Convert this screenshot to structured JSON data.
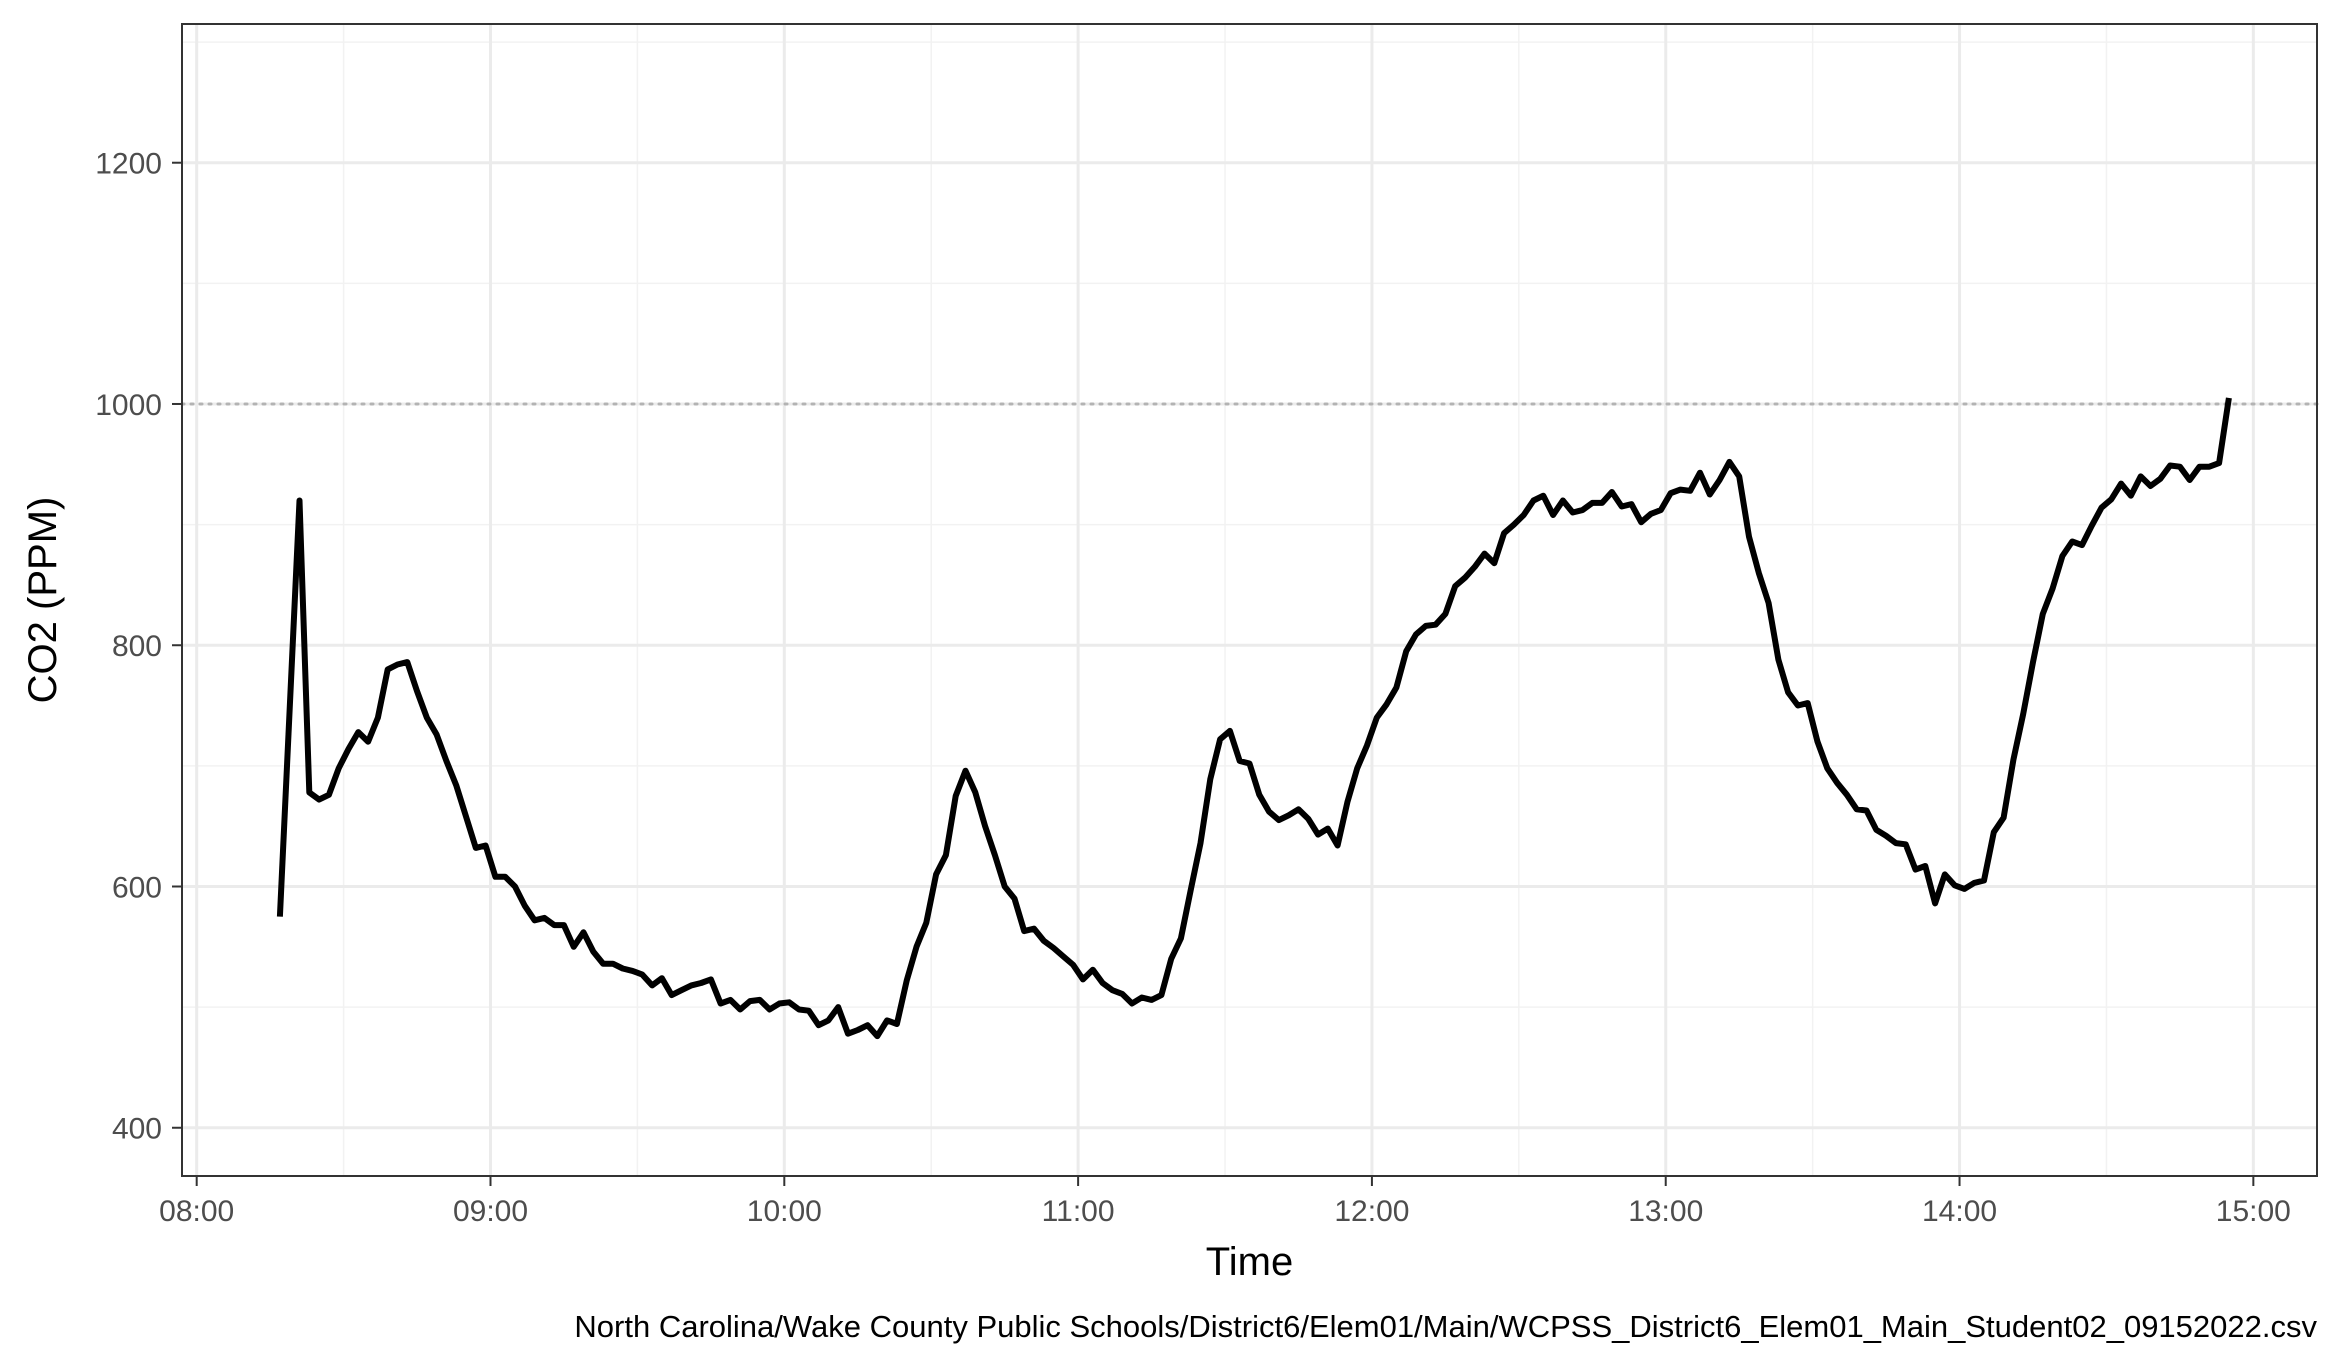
{
  "chart_data": {
    "type": "line",
    "title": "",
    "xlabel": "Time",
    "ylabel": "CO2 (PPM)",
    "caption": "North Carolina/Wake County Public Schools/District6/Elem01/Main/WCPSS_District6_Elem01_Main_Student02_09152022.csv",
    "x_ticks": [
      "08:00",
      "09:00",
      "10:00",
      "11:00",
      "12:00",
      "13:00",
      "14:00",
      "15:00"
    ],
    "y_ticks": [
      400,
      600,
      800,
      1000,
      1200
    ],
    "xlim": [
      "07:57",
      "15:13"
    ],
    "ylim": [
      360,
      1315
    ],
    "grid": true,
    "threshold": {
      "value": 1000,
      "style": "dotted",
      "color": "#b3b3b3"
    },
    "colors": {
      "line": "#000000",
      "panel_border": "#333333",
      "grid_major": "#ebebeb",
      "grid_minor": "#f2f2f2"
    },
    "series": [
      {
        "x": [
          "08:17",
          "08:21",
          "08:23",
          "08:25",
          "08:27",
          "08:29",
          "08:31",
          "08:33",
          "08:35",
          "08:37",
          "08:39",
          "08:41",
          "08:43",
          "08:45",
          "08:47",
          "08:49",
          "08:51",
          "08:53",
          "08:55",
          "08:57",
          "08:59",
          "09:01",
          "09:03",
          "09:05",
          "09:07",
          "09:09",
          "09:11",
          "09:13",
          "09:15",
          "09:17",
          "09:19",
          "09:21",
          "09:23",
          "09:25",
          "09:27",
          "09:29",
          "09:31",
          "09:33",
          "09:35",
          "09:37",
          "09:39",
          "09:41",
          "09:43",
          "09:45",
          "09:47",
          "09:49",
          "09:51",
          "09:53",
          "09:55",
          "09:57",
          "09:59",
          "10:01",
          "10:03",
          "10:05",
          "10:07",
          "10:09",
          "10:11",
          "10:13",
          "10:15",
          "10:17",
          "10:19",
          "10:21",
          "10:23",
          "10:25",
          "10:27",
          "10:29",
          "10:31",
          "10:33",
          "10:35",
          "10:37",
          "10:39",
          "10:41",
          "10:43",
          "10:45",
          "10:47",
          "10:49",
          "10:51",
          "10:53",
          "10:55",
          "10:57",
          "10:59",
          "11:01",
          "11:03",
          "11:05",
          "11:07",
          "11:09",
          "11:11",
          "11:13",
          "11:15",
          "11:17",
          "11:19",
          "11:21",
          "11:23",
          "11:25",
          "11:27",
          "11:29",
          "11:31",
          "11:33",
          "11:35",
          "11:37",
          "11:39",
          "11:41",
          "11:43",
          "11:45",
          "11:47",
          "11:49",
          "11:51",
          "11:53",
          "11:55",
          "11:57",
          "11:59",
          "12:01",
          "12:03",
          "12:05",
          "12:07",
          "12:09",
          "12:11",
          "12:13",
          "12:15",
          "12:17",
          "12:19",
          "12:21",
          "12:23",
          "12:25",
          "12:27",
          "12:29",
          "12:31",
          "12:33",
          "12:35",
          "12:37",
          "12:39",
          "12:41",
          "12:43",
          "12:45",
          "12:47",
          "12:49",
          "12:51",
          "12:53",
          "12:55",
          "12:57",
          "12:59",
          "13:01",
          "13:03",
          "13:05",
          "13:07",
          "13:09",
          "13:11",
          "13:13",
          "13:15",
          "13:17",
          "13:19",
          "13:21",
          "13:23",
          "13:25",
          "13:27",
          "13:29",
          "13:31",
          "13:33",
          "13:35",
          "13:37",
          "13:39",
          "13:41",
          "13:43",
          "13:45",
          "13:47",
          "13:49",
          "13:51",
          "13:53",
          "13:55",
          "13:57",
          "13:59",
          "14:01",
          "14:03",
          "14:05",
          "14:07",
          "14:09",
          "14:11",
          "14:13",
          "14:15",
          "14:17",
          "14:19",
          "14:21",
          "14:23",
          "14:25",
          "14:27",
          "14:29",
          "14:31",
          "14:33",
          "14:35",
          "14:37",
          "14:39",
          "14:41",
          "14:43",
          "14:45",
          "14:47",
          "14:49",
          "14:51",
          "14:53",
          "14:55"
        ],
        "y": [
          575,
          920,
          678,
          672,
          676,
          698,
          714,
          728,
          720,
          740,
          780,
          784,
          786,
          762,
          740,
          726,
          704,
          684,
          658,
          632,
          634,
          608,
          608,
          600,
          584,
          572,
          574,
          568,
          568,
          550,
          562,
          546,
          536,
          536,
          532,
          530,
          527,
          518,
          524,
          510,
          514,
          518,
          520,
          523,
          503,
          506,
          498,
          505,
          506,
          498,
          503,
          504,
          498,
          497,
          485,
          489,
          500,
          478,
          481,
          485,
          476,
          489,
          486,
          522,
          550,
          570,
          610,
          626,
          675,
          696,
          678,
          650,
          626,
          600,
          590,
          563,
          565,
          555,
          549,
          542,
          535,
          523,
          531,
          520,
          514,
          511,
          503,
          508,
          506,
          510,
          540,
          557,
          597,
          636,
          689,
          722,
          729,
          704,
          702,
          676,
          662,
          655,
          659,
          664,
          656,
          643,
          648,
          634,
          670,
          698,
          717,
          740,
          751,
          765,
          795,
          809,
          816,
          817,
          826,
          849,
          856,
          865,
          876,
          868,
          893,
          900,
          908,
          920,
          924,
          908,
          920,
          910,
          912,
          918,
          918,
          927,
          915,
          917,
          902,
          909,
          912,
          926,
          929,
          928,
          943,
          925,
          937,
          952,
          940,
          890,
          860,
          835,
          788,
          761,
          750,
          752,
          720,
          698,
          686,
          676,
          664,
          663,
          647,
          642,
          636,
          635,
          614,
          617,
          586,
          610,
          601,
          598,
          603,
          605,
          645,
          657,
          705,
          743,
          786,
          826,
          847,
          874,
          886,
          883,
          899,
          914,
          921,
          934,
          924,
          940,
          932,
          938,
          949,
          948,
          937,
          948,
          948,
          951,
          1005
        ]
      }
    ]
  }
}
